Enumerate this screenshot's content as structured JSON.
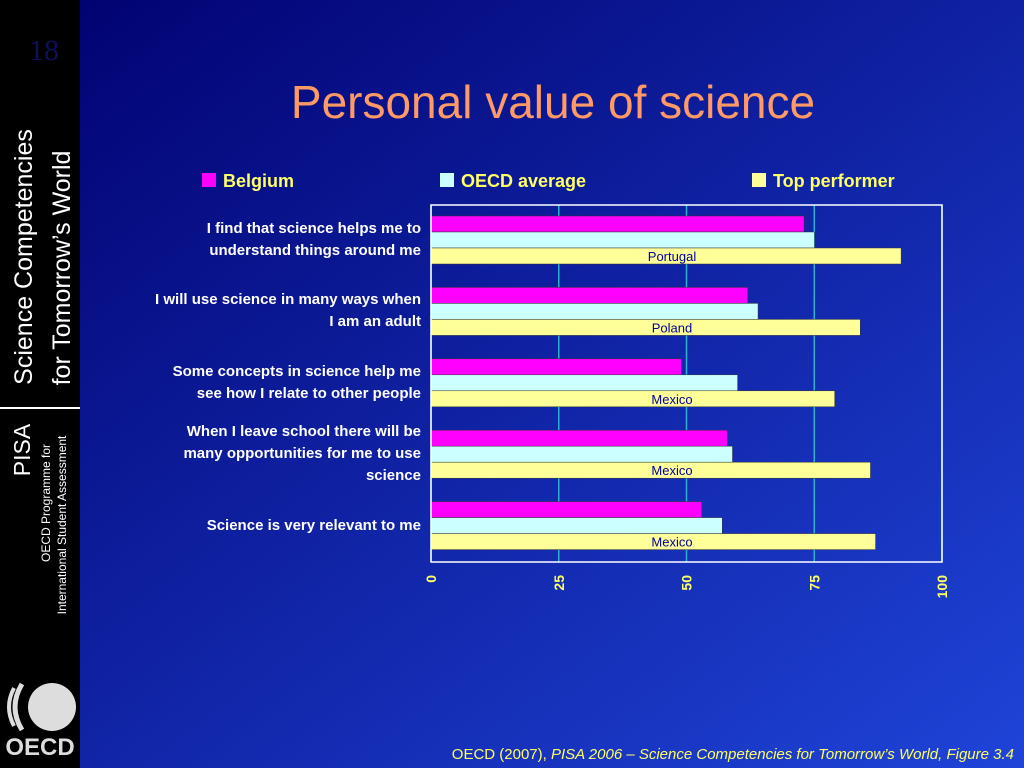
{
  "slide_number": "18",
  "sidebar": {
    "title_line1": "Science Competencies",
    "title_line2": "for Tomorrow’s World",
    "programme": "PISA",
    "programme_line1": "OECD Programme for",
    "programme_line2": "International Student Assessment",
    "logo_text": "OECD"
  },
  "source": {
    "author": "OECD (2007),",
    "title": "PISA 2006 – Science Competencies for Tomorrow’s World, Figure 3.4"
  },
  "chart_data": {
    "type": "hbar",
    "title": "Personal value of science",
    "categories": [
      "I find that science helps me to\nunderstand things around me",
      "I will use science in many ways when\nI am an adult",
      "Some concepts in science help me\nsee how I relate to other people",
      "When I leave school there will be\nmany opportunities for me to use\nscience",
      "Science is very relevant to me"
    ],
    "series": [
      {
        "name": "Belgium",
        "color": "#ff00ff",
        "values": [
          73,
          62,
          49,
          58,
          53
        ]
      },
      {
        "name": "OECD average",
        "color": "#ccffff",
        "values": [
          75,
          64,
          60,
          59,
          57
        ]
      },
      {
        "name": "Top performer",
        "color": "#ffff99",
        "values": [
          92,
          84,
          79,
          86,
          87
        ]
      }
    ],
    "top_performer_labels": [
      "Portugal",
      "Poland",
      "Mexico",
      "Mexico",
      "Mexico"
    ],
    "xlim": [
      0,
      100
    ],
    "xticks": [
      0,
      25,
      50,
      75,
      100
    ],
    "grid": true,
    "legend": "top"
  }
}
